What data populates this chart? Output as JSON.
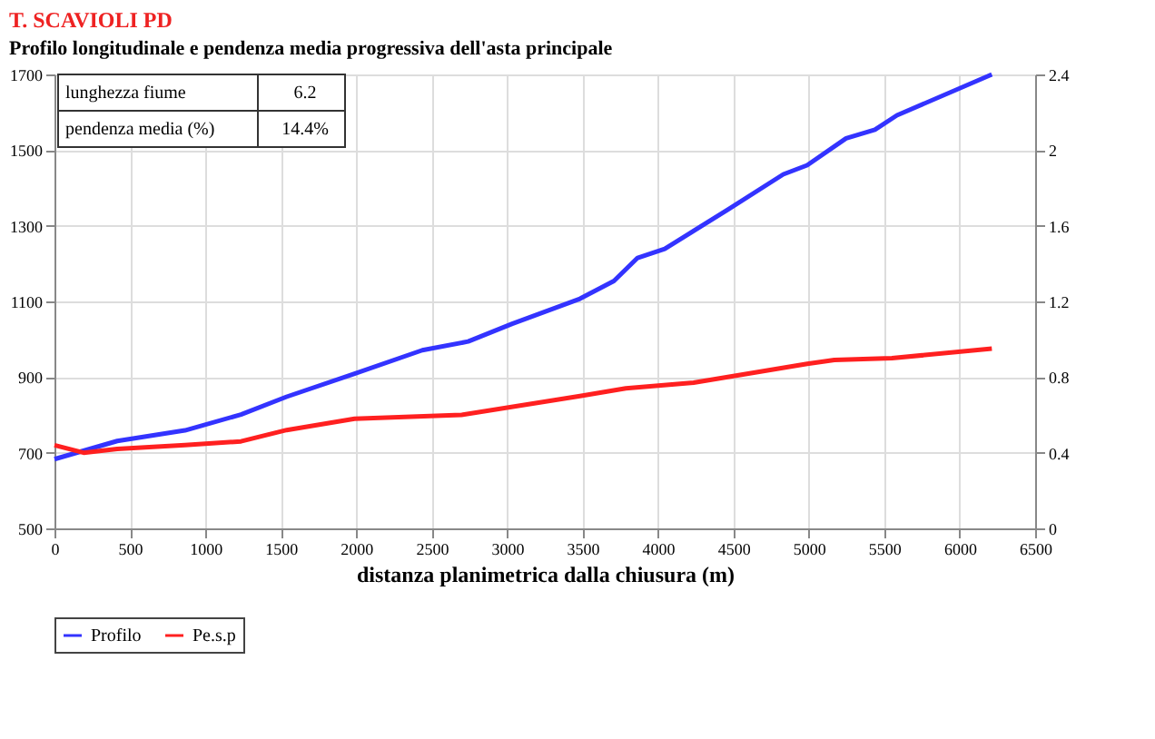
{
  "chart_data": {
    "type": "line",
    "title": "T. SCAVIOLI PD",
    "subtitle": "Profilo longitudinale e pendenza media progressiva dell'asta principale",
    "xlabel": "distanza planimetrica dalla chiusura (m)",
    "annotations": [
      "lunghezza fiume",
      "6.2",
      "pendenza media (%)",
      "14.4%"
    ],
    "series": [
      {
        "name": "Profilo",
        "color": "#3333ff",
        "x": [
          0,
          416,
          865,
          1236,
          1539,
          1989,
          2438,
          2742,
          3034,
          3483,
          3708,
          3865,
          4045,
          4461,
          4831,
          4989,
          5247,
          5438,
          5584,
          6213
        ],
        "values": [
          683,
          731,
          759,
          801,
          848,
          909,
          971,
          994,
          1041,
          1107,
          1154,
          1215,
          1239,
          1342,
          1436,
          1460,
          1531,
          1554,
          1592,
          1700
        ]
      },
      {
        "name": "Pe.s.p",
        "color": "#ff2020",
        "axis": "y2",
        "x": [
          0,
          193,
          416,
          865,
          1236,
          1539,
          1989,
          2697,
          3483,
          3787,
          4236,
          4989,
          5169,
          5551,
          6213
        ],
        "values": [
          0.44,
          0.4,
          0.42,
          0.44,
          0.46,
          0.52,
          0.58,
          0.6,
          0.7,
          0.74,
          0.77,
          0.87,
          0.89,
          0.9,
          0.95
        ]
      }
    ],
    "xlim": [
      0,
      6500
    ],
    "xticks": [
      0,
      500,
      1000,
      1500,
      2000,
      2500,
      3000,
      3500,
      4000,
      4500,
      5000,
      5500,
      6000,
      6500
    ],
    "ylim": [
      500,
      1700
    ],
    "yticks": [
      500,
      700,
      900,
      1100,
      1300,
      1500,
      1700
    ],
    "y2lim": [
      0,
      2.4
    ],
    "y2ticks": [
      0,
      0.4,
      0.8,
      1.2,
      1.6,
      2,
      2.4
    ],
    "grid": true,
    "legend": "bottom"
  }
}
